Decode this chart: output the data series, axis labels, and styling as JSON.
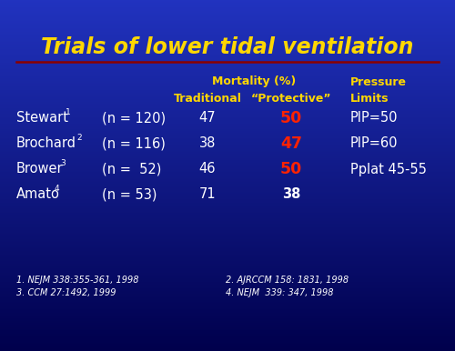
{
  "title": "Trials of lower tidal ventilation",
  "title_color": "#FFD700",
  "title_fontsize": 17,
  "background_color": "#1a35c8",
  "bg_gradient_top": "#2244dd",
  "bg_gradient_bottom": "#000066",
  "header_color": "#FFD700",
  "row_color_white": "#FFFFFF",
  "row_color_red": "#FF2200",
  "footnote_color": "#FFFFFF",
  "underline_color": "#8B0000",
  "rows": [
    {
      "author": "Stewart",
      "sup": "1",
      "n": "(n = 120)",
      "traditional": "47",
      "protective": "50",
      "protective_red": true,
      "pressure": "PIP=50"
    },
    {
      "author": "Brochard",
      "sup": "2",
      "n": "(n = 116)",
      "traditional": "38",
      "protective": "47",
      "protective_red": true,
      "pressure": "PIP=60"
    },
    {
      "author": "Brower",
      "sup": "3",
      "n": "(n =  52)",
      "traditional": "46",
      "protective": "50",
      "protective_red": true,
      "pressure": "Pplat 45-55"
    },
    {
      "author": "Amato",
      "sup": "4",
      "n": "(n = 53)",
      "traditional": "71",
      "protective": "38",
      "protective_red": false,
      "pressure": ""
    }
  ],
  "footnote_lines": [
    [
      "1. NEJM 338:355-361, 1998",
      "2. AJRCCM 158: 1831, 1998"
    ],
    [
      "3. CCM 27:1492, 1999",
      "4. NEJM  339: 347, 1998"
    ]
  ]
}
